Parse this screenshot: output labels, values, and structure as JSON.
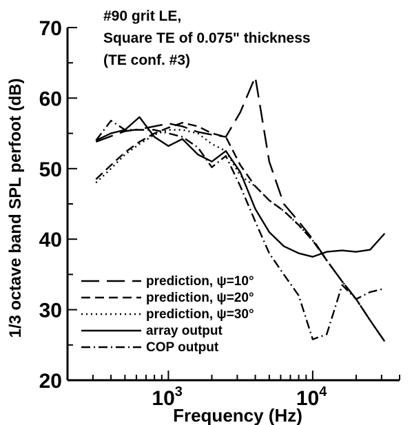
{
  "chart_data": {
    "type": "line",
    "title_lines": [
      "#90 grit LE,",
      "Square TE of  0.075\" thickness",
      "(TE conf. #3)"
    ],
    "xlabel": "Frequency (Hz)",
    "ylabel": "1/3 octave band SPL perfoot (dB)",
    "x_scale": "log",
    "xlim": [
      200,
      40000
    ],
    "ylim": [
      20,
      70
    ],
    "y_ticks": [
      20,
      30,
      40,
      50,
      60,
      70
    ],
    "x_major_ticks": [
      {
        "value": 1000,
        "base": "10",
        "exp": "3"
      },
      {
        "value": 10000,
        "base": "10",
        "exp": "4"
      }
    ],
    "grid": false,
    "legend_position": "lower-left",
    "series": [
      {
        "name": "prediction, ψ=10°",
        "dash": "dash-long",
        "points": [
          [
            315,
            53.8
          ],
          [
            400,
            54.6
          ],
          [
            500,
            55.3
          ],
          [
            630,
            55.6
          ],
          [
            800,
            56.0
          ],
          [
            1000,
            56.4
          ],
          [
            1250,
            56.0
          ],
          [
            1600,
            55.2
          ],
          [
            2000,
            54.8
          ],
          [
            2500,
            54.5
          ],
          [
            3150,
            58.0
          ],
          [
            4000,
            63.0
          ],
          [
            5000,
            51.0
          ],
          [
            6300,
            45.0
          ],
          [
            8000,
            42.5
          ],
          [
            10000,
            40.0
          ],
          [
            12500,
            37.0
          ],
          [
            16000,
            34.0
          ],
          [
            20000,
            31.5
          ],
          [
            25000,
            28.5
          ],
          [
            31500,
            25.5
          ]
        ]
      },
      {
        "name": "prediction, ψ=20°",
        "dash": "dash",
        "points": [
          [
            315,
            48.5
          ],
          [
            400,
            50.5
          ],
          [
            500,
            52.3
          ],
          [
            630,
            53.8
          ],
          [
            800,
            55.0
          ],
          [
            1000,
            55.8
          ],
          [
            1250,
            56.5
          ],
          [
            1600,
            56.0
          ],
          [
            2000,
            55.0
          ],
          [
            2500,
            54.5
          ],
          [
            3150,
            50.5
          ],
          [
            4000,
            47.5
          ],
          [
            5000,
            45.5
          ],
          [
            6300,
            44.0
          ],
          [
            8000,
            42.0
          ],
          [
            10000,
            39.8
          ],
          [
            12500,
            37.0
          ],
          [
            16000,
            34.0
          ],
          [
            20000,
            31.5
          ],
          [
            25000,
            28.5
          ],
          [
            31500,
            25.5
          ]
        ]
      },
      {
        "name": "prediction, ψ=30°",
        "dash": "dot",
        "points": [
          [
            315,
            48.0
          ],
          [
            400,
            50.0
          ],
          [
            500,
            52.0
          ],
          [
            630,
            53.5
          ],
          [
            800,
            54.8
          ],
          [
            1000,
            55.5
          ],
          [
            1250,
            55.5
          ],
          [
            1600,
            55.0
          ],
          [
            2000,
            53.5
          ],
          [
            2500,
            52.5
          ],
          [
            3150,
            49.0
          ],
          [
            4000,
            47.5
          ],
          [
            5000,
            45.5
          ],
          [
            6300,
            44.0
          ],
          [
            8000,
            42.0
          ],
          [
            10000,
            39.8
          ],
          [
            12500,
            37.0
          ],
          [
            16000,
            34.0
          ],
          [
            20000,
            31.5
          ],
          [
            25000,
            28.5
          ],
          [
            31500,
            25.5
          ]
        ]
      },
      {
        "name": "array output",
        "dash": "solid",
        "points": [
          [
            315,
            54.0
          ],
          [
            400,
            55.0
          ],
          [
            500,
            55.5
          ],
          [
            630,
            57.3
          ],
          [
            800,
            54.5
          ],
          [
            1000,
            53.2
          ],
          [
            1250,
            54.2
          ],
          [
            1600,
            52.0
          ],
          [
            2000,
            51.0
          ],
          [
            2500,
            52.5
          ],
          [
            3150,
            49.5
          ],
          [
            4000,
            44.3
          ],
          [
            5000,
            41.0
          ],
          [
            6300,
            39.0
          ],
          [
            8000,
            38.0
          ],
          [
            10000,
            37.5
          ],
          [
            12500,
            38.2
          ],
          [
            16000,
            38.4
          ],
          [
            20000,
            38.2
          ],
          [
            25000,
            38.5
          ],
          [
            31500,
            40.8
          ]
        ]
      },
      {
        "name": "COP output",
        "dash": "dashdot",
        "points": [
          [
            315,
            54.0
          ],
          [
            400,
            56.8
          ],
          [
            500,
            55.5
          ],
          [
            630,
            55.5
          ],
          [
            800,
            55.5
          ],
          [
            1000,
            55.0
          ],
          [
            1250,
            54.5
          ],
          [
            1600,
            53.0
          ],
          [
            2000,
            50.2
          ],
          [
            2500,
            51.8
          ],
          [
            3150,
            47.5
          ],
          [
            4000,
            42.5
          ],
          [
            5000,
            38.0
          ],
          [
            6300,
            35.0
          ],
          [
            8000,
            32.0
          ],
          [
            10000,
            25.8
          ],
          [
            12500,
            26.5
          ],
          [
            16000,
            33.5
          ],
          [
            20000,
            31.5
          ],
          [
            25000,
            32.5
          ],
          [
            31500,
            33.0
          ]
        ]
      }
    ]
  }
}
